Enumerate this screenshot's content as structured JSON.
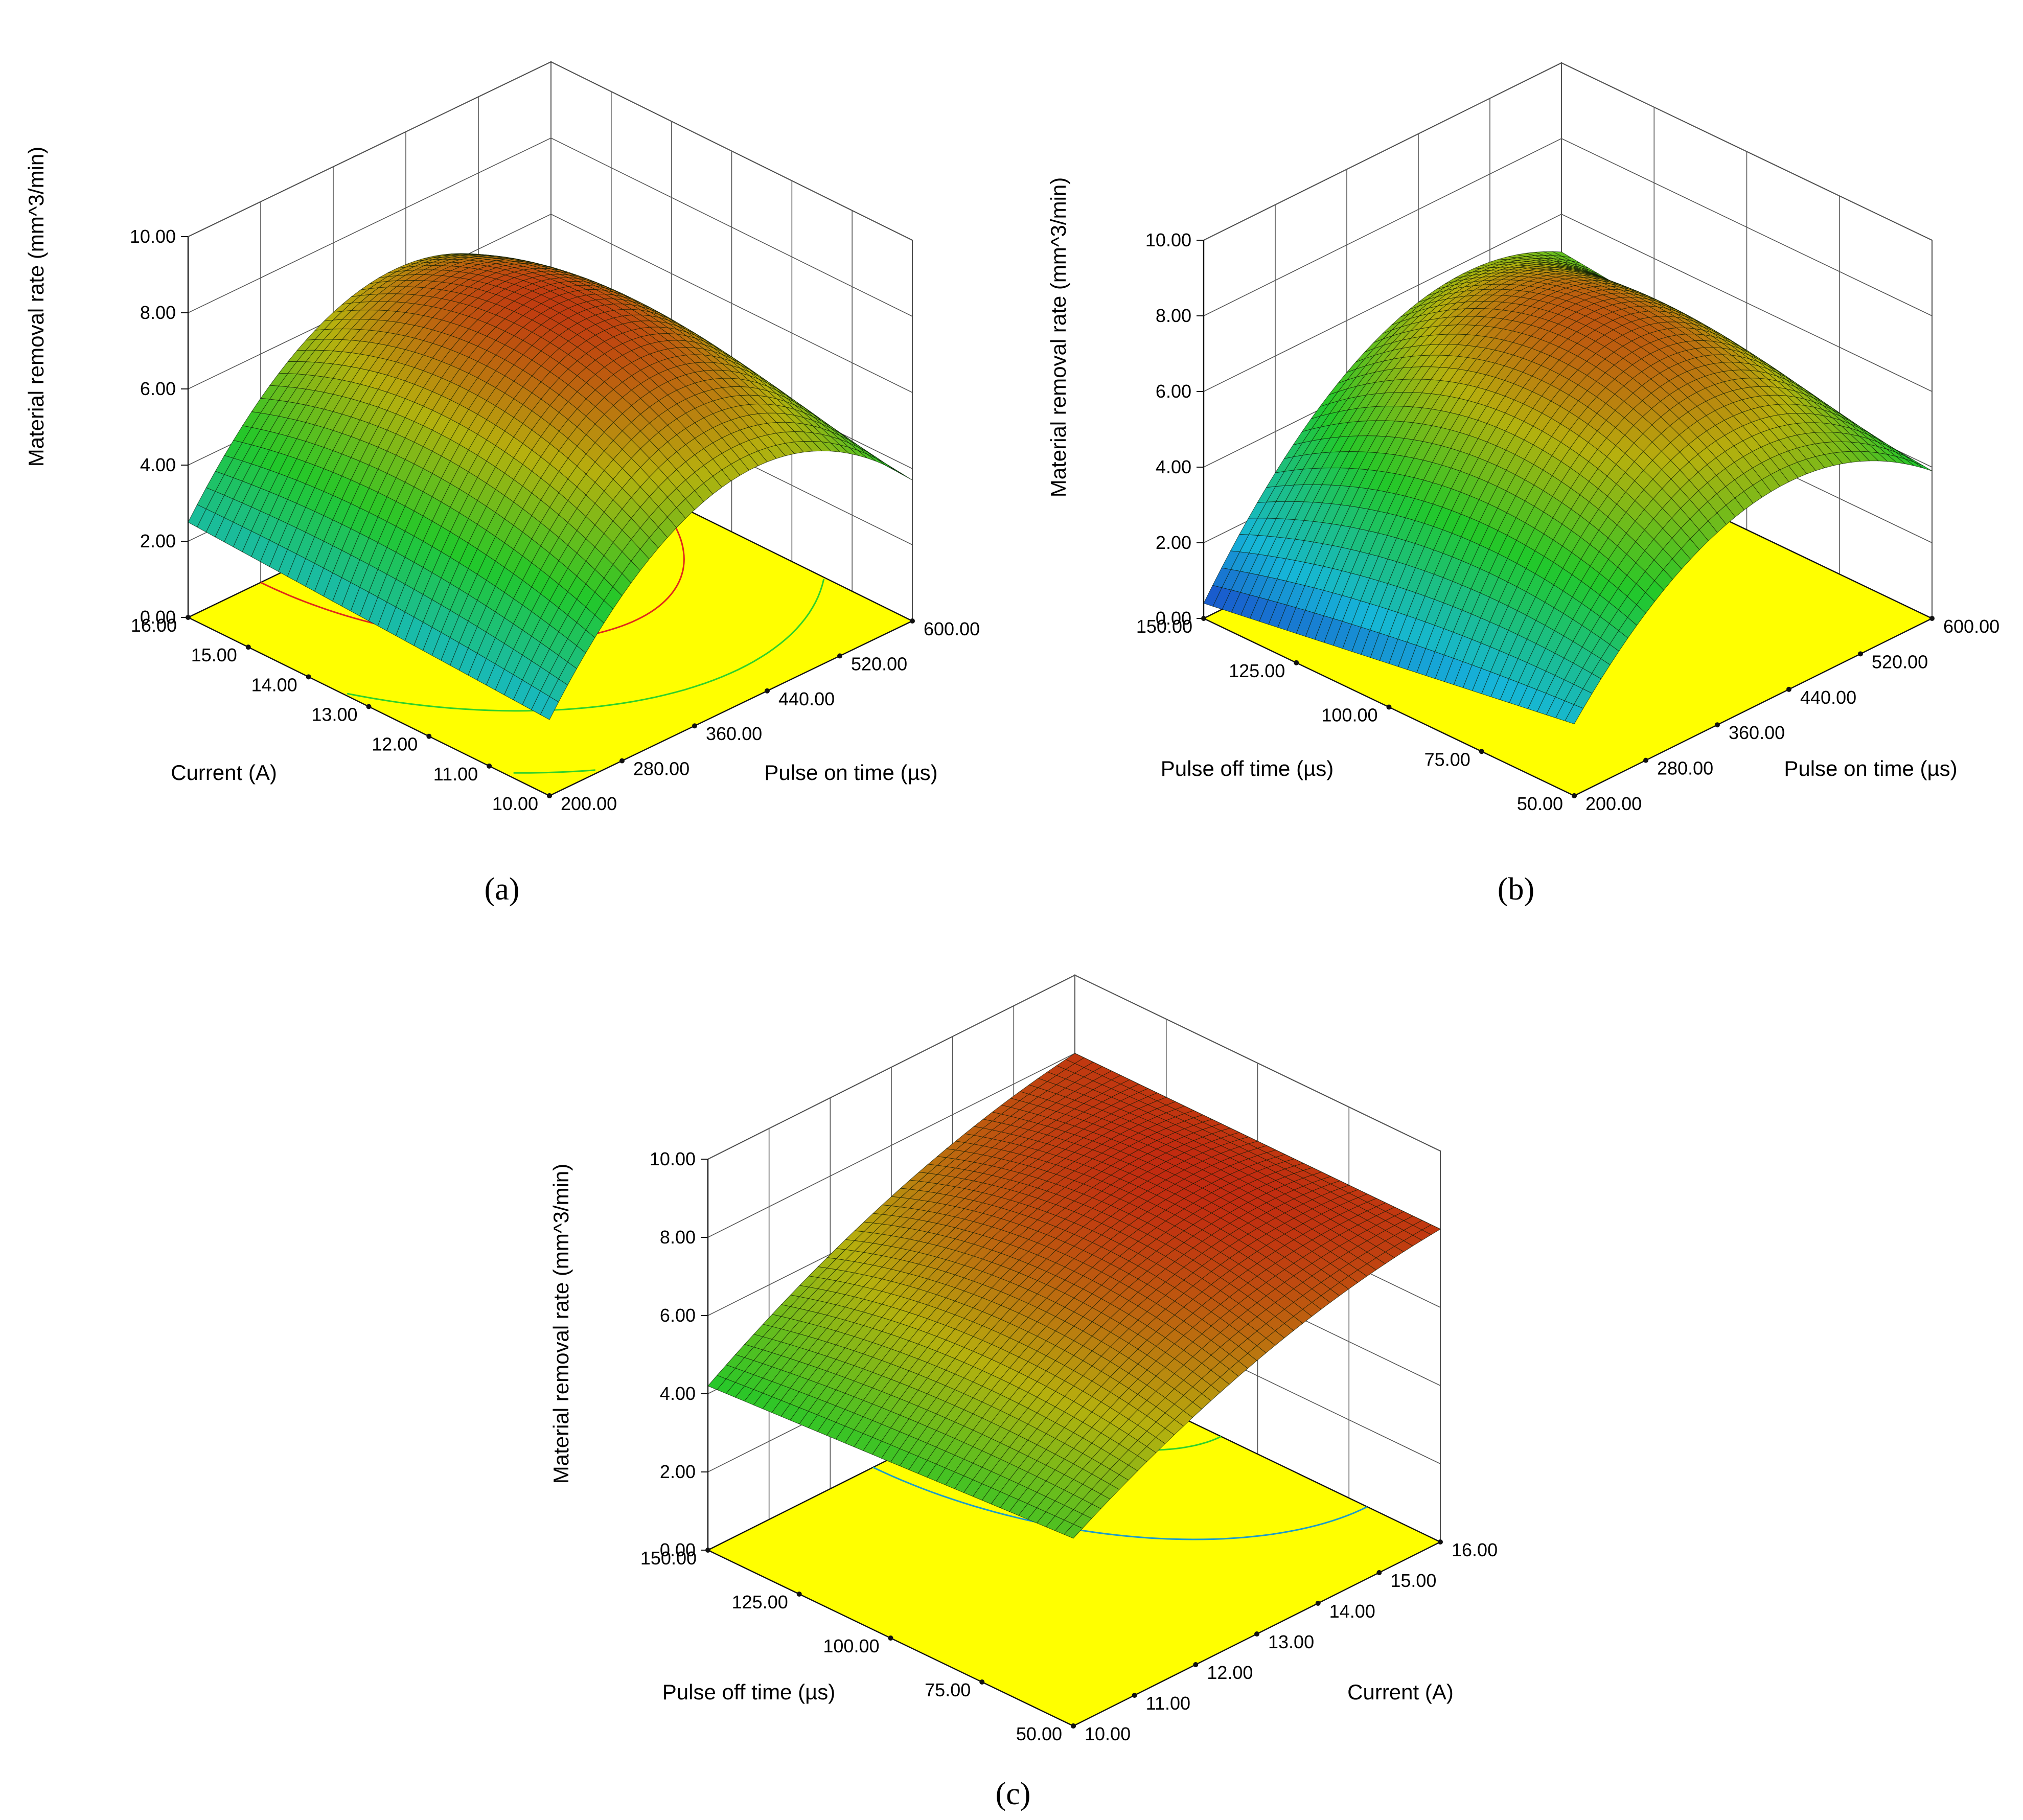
{
  "chart_data": [
    {
      "type": "surface3d",
      "panel_label": "(a)",
      "zlabel": "Material removal rate (mm^3/min)",
      "zlim": [
        0,
        10
      ],
      "z_ticks": [
        "0.00",
        "2.00",
        "4.00",
        "6.00",
        "8.00",
        "10.00"
      ],
      "x_axis": {
        "label": "Pulse on time (µs)",
        "range": [
          200,
          600
        ],
        "ticks": [
          "200.00",
          "280.00",
          "360.00",
          "440.00",
          "520.00",
          "600.00"
        ]
      },
      "y_axis": {
        "label": "Current (A)",
        "range": [
          10,
          16
        ],
        "ticks": [
          "10.00",
          "11.00",
          "12.00",
          "13.00",
          "14.00",
          "15.00",
          "16.00"
        ]
      },
      "corner_z": {
        "x_min_y_min": 2.0,
        "x_max_y_min": 3.7,
        "x_min_y_max": 2.5,
        "x_max_y_max": 4.2
      },
      "peak_z": 9.5,
      "floor_contours": [
        "green",
        "red",
        "green",
        "green"
      ]
    },
    {
      "type": "surface3d",
      "panel_label": "(b)",
      "zlabel": "Material removal rate (mm^3/min)",
      "zlim": [
        0,
        10
      ],
      "z_ticks": [
        "0.00",
        "2.00",
        "4.00",
        "6.00",
        "8.00",
        "10.00"
      ],
      "x_axis": {
        "label": "Pulse on time (µs)",
        "range": [
          200,
          600
        ],
        "ticks": [
          "200.00",
          "280.00",
          "360.00",
          "440.00",
          "520.00",
          "600.00"
        ]
      },
      "y_axis": {
        "label": "Pulse off time (µs)",
        "range": [
          50,
          150
        ],
        "ticks": [
          "50.00",
          "75.00",
          "100.00",
          "125.00",
          "150.00"
        ]
      },
      "corner_z": {
        "x_min_y_min": 1.9,
        "x_max_y_min": 3.9,
        "x_min_y_max": 0.4,
        "x_max_y_max": 5.0
      },
      "peak_z": 7.9,
      "floor_contours": [
        "green",
        "green",
        "green",
        "red"
      ]
    },
    {
      "type": "surface3d",
      "panel_label": "(c)",
      "zlabel": "Material removal rate (mm^3/min)",
      "zlim": [
        0,
        10
      ],
      "z_ticks": [
        "0.00",
        "2.00",
        "4.00",
        "6.00",
        "8.00",
        "10.00"
      ],
      "x_axis": {
        "label": "Current (A)",
        "range": [
          10,
          16
        ],
        "ticks": [
          "10.00",
          "11.00",
          "12.00",
          "13.00",
          "14.00",
          "15.00",
          "16.00"
        ]
      },
      "y_axis": {
        "label": "Pulse off time (µs)",
        "range": [
          50,
          150
        ],
        "ticks": [
          "50.00",
          "75.00",
          "100.00",
          "125.00",
          "150.00"
        ]
      },
      "corner_z": {
        "x_min_y_min": 4.8,
        "x_max_y_min": 8.0,
        "x_min_y_max": 4.2,
        "x_max_y_max": 8.0
      },
      "peak_z": 9.4,
      "floor_contours": [
        "blue",
        "green"
      ]
    }
  ]
}
